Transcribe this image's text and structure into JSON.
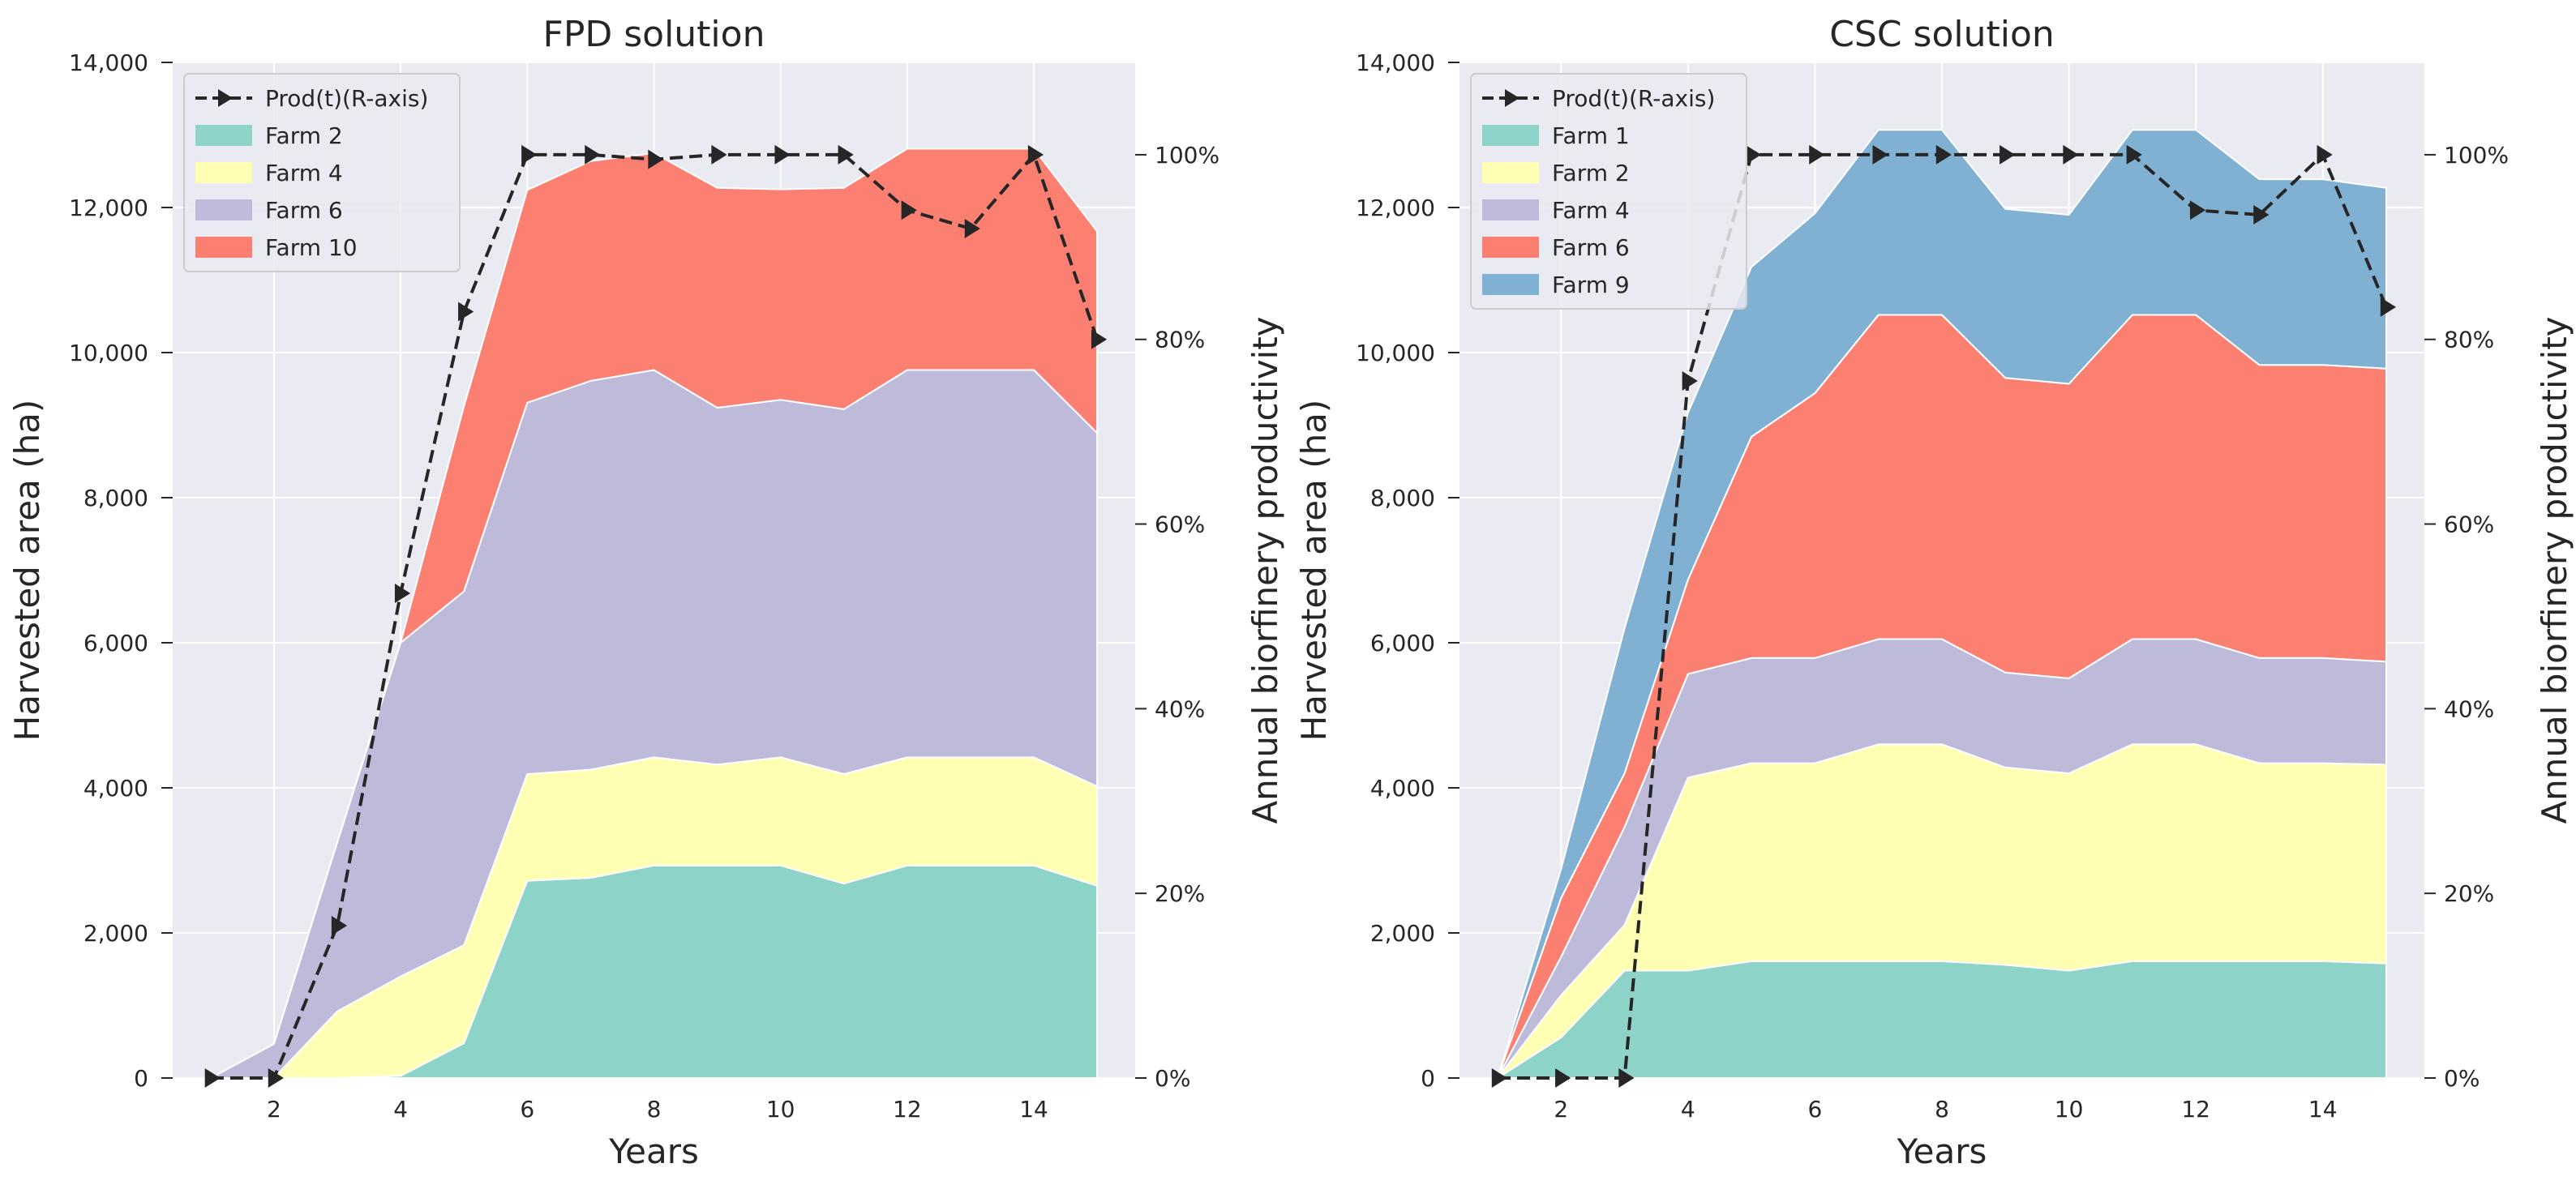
{
  "chart_data": [
    {
      "type": "area",
      "stacked": true,
      "title": "FPD solution",
      "xlabel": "Years",
      "ylabel": "Harvested area (ha)",
      "y2label": "Annual biorfinery productivity",
      "xlim": [
        0.4,
        15.6
      ],
      "ylim": [
        0,
        14000
      ],
      "y2lim": [
        0,
        110
      ],
      "xticks": [
        2,
        4,
        6,
        8,
        10,
        12,
        14
      ],
      "yticks": [
        0,
        2000,
        4000,
        6000,
        8000,
        10000,
        12000,
        14000
      ],
      "ytick_labels": [
        "0",
        "2,000",
        "4,000",
        "6,000",
        "8,000",
        "10,000",
        "12,000",
        "14,000"
      ],
      "y2ticks": [
        0,
        20,
        40,
        60,
        80,
        100
      ],
      "y2tick_labels": [
        "0%",
        "20%",
        "40%",
        "60%",
        "80%",
        "100%"
      ],
      "x": [
        1,
        2,
        3,
        4,
        5,
        6,
        7,
        8,
        9,
        10,
        11,
        12,
        13,
        14,
        15
      ],
      "series": [
        {
          "name": "Farm 2",
          "color": "#8dd3c7",
          "values": [
            0,
            0,
            0,
            30,
            480,
            2720,
            2760,
            2930,
            2930,
            2930,
            2680,
            2930,
            2930,
            2930,
            2650
          ]
        },
        {
          "name": "Farm 4",
          "color": "#ffffb3",
          "values": [
            0,
            0,
            920,
            1370,
            1350,
            1470,
            1490,
            1490,
            1390,
            1490,
            1510,
            1490,
            1490,
            1490,
            1370
          ]
        },
        {
          "name": "Farm 6",
          "color": "#bebada",
          "values": [
            0,
            470,
            2330,
            4600,
            4880,
            5120,
            5360,
            5340,
            4920,
            4930,
            5030,
            5340,
            5340,
            5340,
            4870
          ]
        },
        {
          "name": "Farm 10",
          "color": "#fb8072",
          "values": [
            0,
            0,
            0,
            0,
            2550,
            2930,
            3030,
            2990,
            3030,
            2900,
            3050,
            3050,
            3050,
            3050,
            2780
          ]
        }
      ],
      "line": {
        "name": "Prod(t)(R-axis)",
        "axis": "right",
        "color": "#262626",
        "marker": "triangle-right",
        "style": "dashed",
        "values": [
          0,
          0,
          16.5,
          52.5,
          83,
          100,
          100,
          99.5,
          100,
          100,
          100,
          94,
          92,
          100,
          80
        ]
      },
      "legend": "top-left"
    },
    {
      "type": "area",
      "stacked": true,
      "title": "CSC solution",
      "xlabel": "Years",
      "ylabel": "Harvested area (ha)",
      "y2label": "Annual biorfinery productivity",
      "xlim": [
        0.4,
        15.6
      ],
      "ylim": [
        0,
        14000
      ],
      "y2lim": [
        0,
        110
      ],
      "xticks": [
        2,
        4,
        6,
        8,
        10,
        12,
        14
      ],
      "yticks": [
        0,
        2000,
        4000,
        6000,
        8000,
        10000,
        12000,
        14000
      ],
      "ytick_labels": [
        "0",
        "2,000",
        "4,000",
        "6,000",
        "8,000",
        "10,000",
        "12,000",
        "14,000"
      ],
      "y2ticks": [
        0,
        20,
        40,
        60,
        80,
        100
      ],
      "y2tick_labels": [
        "0%",
        "20%",
        "40%",
        "60%",
        "80%",
        "100%"
      ],
      "x": [
        1,
        2,
        3,
        4,
        5,
        6,
        7,
        8,
        9,
        10,
        11,
        12,
        13,
        14,
        15
      ],
      "series": [
        {
          "name": "Farm 1",
          "color": "#8dd3c7",
          "values": [
            0,
            560,
            1480,
            1480,
            1610,
            1610,
            1610,
            1610,
            1560,
            1480,
            1610,
            1610,
            1610,
            1610,
            1580
          ]
        },
        {
          "name": "Farm 2",
          "color": "#ffffb3",
          "values": [
            0,
            580,
            630,
            2660,
            2730,
            2730,
            2990,
            2990,
            2720,
            2720,
            2990,
            2990,
            2730,
            2730,
            2740
          ]
        },
        {
          "name": "Farm 4",
          "color": "#bebada",
          "values": [
            0,
            530,
            1350,
            1430,
            1450,
            1450,
            1450,
            1450,
            1310,
            1310,
            1450,
            1450,
            1450,
            1450,
            1420
          ]
        },
        {
          "name": "Farm 6",
          "color": "#fb8072",
          "values": [
            0,
            810,
            740,
            1300,
            3050,
            3650,
            4470,
            4470,
            4060,
            4060,
            4470,
            4470,
            4040,
            4040,
            4040
          ]
        },
        {
          "name": "Farm 9",
          "color": "#80b1d3",
          "values": [
            0,
            400,
            2000,
            2300,
            2340,
            2480,
            2550,
            2550,
            2330,
            2330,
            2550,
            2550,
            2560,
            2560,
            2490
          ]
        }
      ],
      "line": {
        "name": "Prod(t)(R-axis)",
        "axis": "right",
        "color": "#262626",
        "marker": "triangle-right",
        "style": "dashed",
        "values": [
          0,
          0,
          0,
          75.5,
          100,
          100,
          100,
          100,
          100,
          100,
          100,
          94,
          93.5,
          100,
          83.5
        ]
      },
      "legend": "top-left"
    }
  ]
}
